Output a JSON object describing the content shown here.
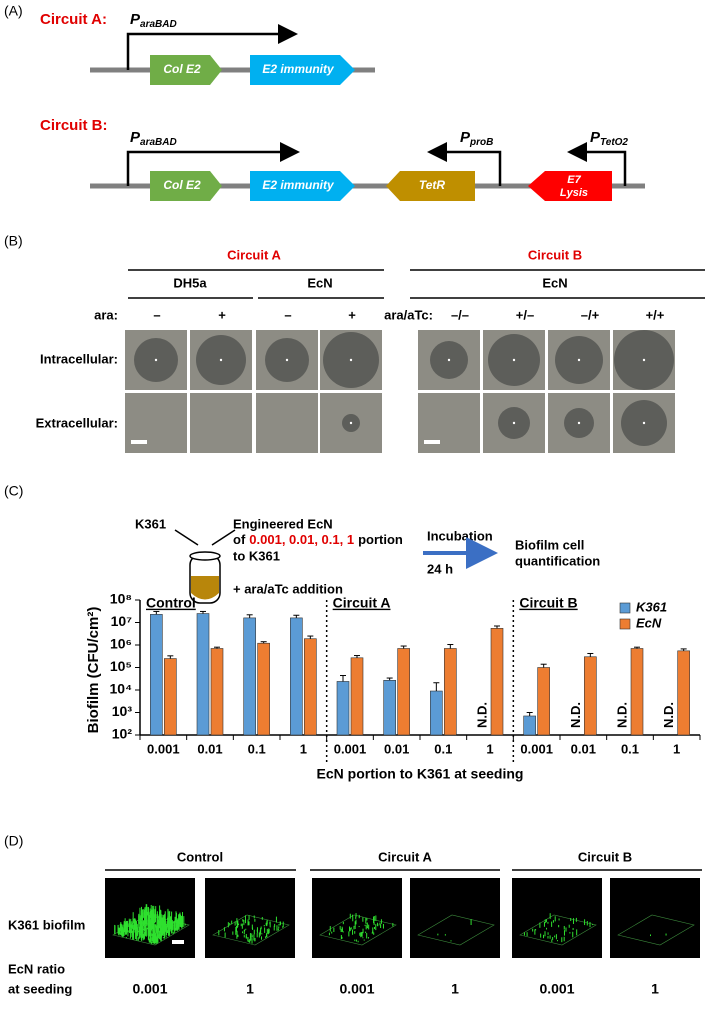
{
  "figure_labels": [
    "(A)",
    "(B)",
    "(C)",
    "(D)"
  ],
  "panel_a": {
    "circuits": [
      {
        "name": "Circuit A:",
        "promoters": [
          {
            "main": "P",
            "sub": "araBAD"
          }
        ],
        "genes": [
          [
            "Col E2"
          ],
          [
            "E2 immunity"
          ]
        ]
      },
      {
        "name": "Circuit B:",
        "promoters": [
          {
            "main": "P",
            "sub": "araBAD"
          },
          {
            "main": "P",
            "sub": "proB"
          },
          {
            "main": "P",
            "sub": "TetO2"
          }
        ],
        "genes": [
          [
            "Col E2"
          ],
          [
            "E2 immunity"
          ],
          [
            "TetR"
          ],
          [
            "E7",
            "Lysis"
          ]
        ]
      }
    ]
  },
  "panel_b": {
    "circuit_a": {
      "title": "Circuit A",
      "strains": [
        "DH5a",
        "EcN"
      ],
      "condition_label": "ara:",
      "conditions": [
        "–",
        "+",
        "–",
        "+"
      ]
    },
    "circuit_b": {
      "title": "Circuit B",
      "strain": "EcN",
      "condition_label": "ara/aTc:",
      "conditions": [
        "–/–",
        "+/–",
        "–/+",
        "+/+"
      ]
    },
    "rows": [
      "Intracellular:",
      "Extracellular:"
    ]
  },
  "panel_c_schematic": {
    "k361": "K361",
    "engineered": "Engineered EcN",
    "portion": [
      "of",
      "0.001, 0.01, 0.1, 1",
      "portion"
    ],
    "to": "to K361",
    "addition": "+ ara/aTc addition",
    "incubation": "Incubation",
    "time": "24 h",
    "result": [
      "Biofilm cell",
      "quantification"
    ]
  },
  "chart_data": {
    "type": "bar",
    "y_label": "Biofilm (CFU/cm²)",
    "x_label": "EcN portion to K361 at seeding",
    "groups": [
      "Control",
      "Circuit A",
      "Circuit B"
    ],
    "categories": [
      "0.001",
      "0.01",
      "0.1",
      "1",
      "0.001",
      "0.01",
      "0.1",
      "1",
      "0.001",
      "0.01",
      "0.1",
      "1"
    ],
    "log_scale": true,
    "ylim": [
      100,
      100000000
    ],
    "yticks": [
      {
        "value": 100,
        "label": "10²"
      },
      {
        "value": 1000,
        "label": "10³"
      },
      {
        "value": 10000,
        "label": "10⁴"
      },
      {
        "value": 100000,
        "label": "10⁵"
      },
      {
        "value": 1000000,
        "label": "10⁶"
      },
      {
        "value": 10000000,
        "label": "10⁷"
      },
      {
        "value": 100000000,
        "label": "10⁸"
      }
    ],
    "legend": "upper right",
    "series": [
      {
        "name": "K361",
        "color": "#5b9bd5",
        "values": [
          23000000,
          25000000,
          16000000,
          16000000,
          24000,
          27000,
          9000,
          null,
          700,
          null,
          null,
          null
        ],
        "errors": [
          8000000,
          6000000,
          6000000,
          5000000,
          20000,
          7000,
          12000,
          null,
          300,
          null,
          null,
          null
        ],
        "value_labels": [
          null,
          null,
          null,
          null,
          null,
          null,
          null,
          "N.D.",
          null,
          "N.D.",
          "N.D.",
          "N.D."
        ]
      },
      {
        "name": "EcN",
        "color": "#ed7d31",
        "values": [
          250000,
          700000,
          1200000,
          1900000,
          270000,
          700000,
          700000,
          5500000,
          100000,
          300000,
          700000,
          550000
        ],
        "errors": [
          80000,
          100000,
          200000,
          600000,
          70000,
          200000,
          350000,
          1500000,
          40000,
          120000,
          100000,
          120000
        ]
      }
    ]
  },
  "panel_d": {
    "groups": [
      "Control",
      "Circuit A",
      "Circuit B"
    ],
    "row_label": "K361 biofilm",
    "ratio_label": [
      "EcN ratio",
      "at seeding"
    ],
    "ratios": [
      "0.001",
      "1",
      "0.001",
      "1",
      "0.001",
      "1"
    ]
  }
}
